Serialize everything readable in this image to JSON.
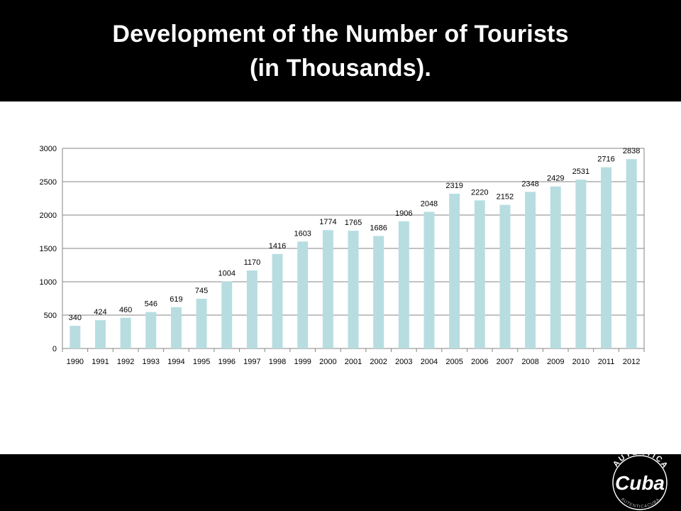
{
  "slide": {
    "title_line1": "Development of the Number of Tourists",
    "title_line2": "(in Thousands)."
  },
  "logo": {
    "text_top": "AUTÉNTICA",
    "text_main": "Cuba",
    "text_ring": "AUTENTICACUBA.COM"
  },
  "colors": {
    "background": "#000000",
    "plot_background": "#ffffff",
    "bar": "#b7dde1",
    "grid": "#868686",
    "text": "#000000"
  },
  "chart_data": {
    "type": "bar",
    "categories": [
      "1990",
      "1991",
      "1992",
      "1993",
      "1994",
      "1995",
      "1996",
      "1997",
      "1998",
      "1999",
      "2000",
      "2001",
      "2002",
      "2003",
      "2004",
      "2005",
      "2006",
      "2007",
      "2008",
      "2009",
      "2010",
      "2011",
      "2012"
    ],
    "values": [
      340,
      424,
      460,
      546,
      619,
      745,
      1004,
      1170,
      1416,
      1603,
      1774,
      1765,
      1686,
      1906,
      2048,
      2319,
      2220,
      2152,
      2348,
      2429,
      2531,
      2716,
      2838
    ],
    "ylim": [
      0,
      3000
    ],
    "yticks": [
      0,
      500,
      1000,
      1500,
      2000,
      2500,
      3000
    ],
    "grid": true,
    "data_labels": true,
    "legend": "none"
  }
}
